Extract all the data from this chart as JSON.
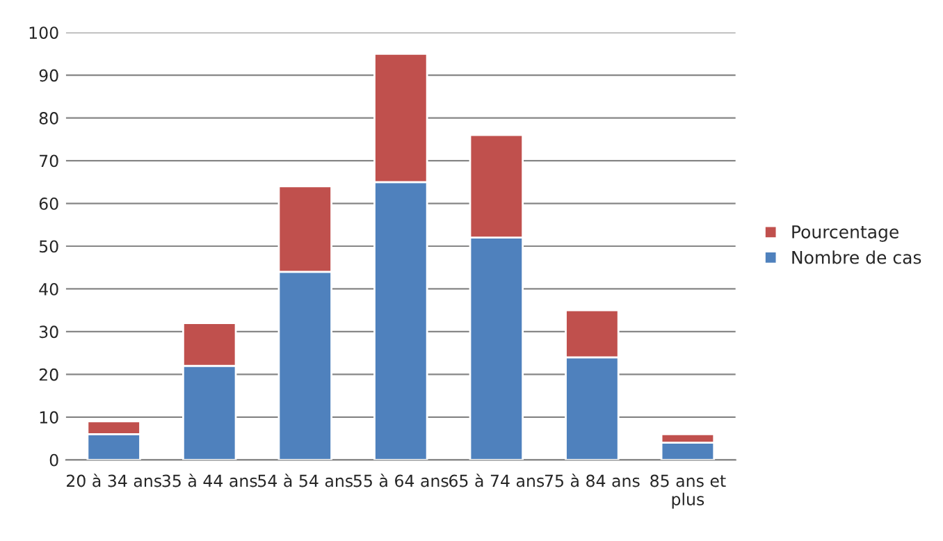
{
  "chart_data": {
    "type": "bar",
    "stacked": true,
    "categories": [
      "20 à 34 ans",
      "35 à 44 ans",
      "54 à 54 ans",
      "55 à 64 ans",
      "65 à 74 ans",
      "75 à 84 ans",
      "85 ans et\nplus"
    ],
    "series": [
      {
        "name": "Nombre de cas",
        "color": "#4f81bd",
        "values": [
          6,
          22,
          44,
          65,
          52,
          24,
          4
        ]
      },
      {
        "name": "Pourcentage",
        "color": "#c0504d",
        "values": [
          3,
          10,
          20,
          30,
          24,
          11,
          2
        ]
      }
    ],
    "ylim": [
      0,
      100
    ],
    "yticks": [
      0,
      10,
      20,
      30,
      40,
      50,
      60,
      70,
      80,
      90,
      100
    ],
    "grid": "y",
    "legend": "right"
  }
}
